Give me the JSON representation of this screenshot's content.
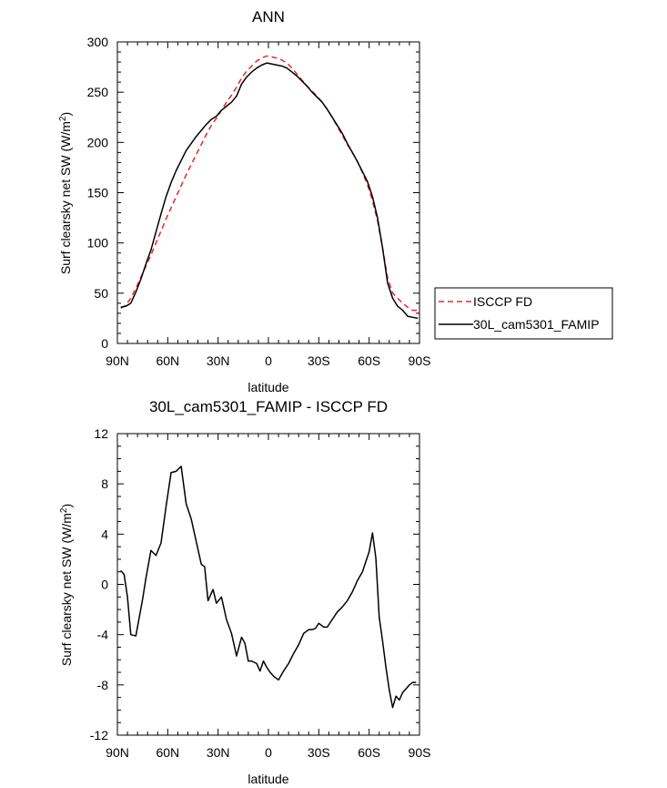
{
  "chart_data": [
    {
      "type": "line",
      "title": "ANN",
      "xlabel": "latitude",
      "ylabel": "Surf clearsky net SW (W/m²)",
      "ylabel_main": "Surf clearsky net SW (W/m",
      "ylabel_sup": "2",
      "ylabel_tail": ")",
      "xlim": [
        90,
        -90
      ],
      "ylim": [
        0,
        300
      ],
      "xticks": [
        {
          "value": 90,
          "label": "90N"
        },
        {
          "value": 60,
          "label": "60N"
        },
        {
          "value": 30,
          "label": "30N"
        },
        {
          "value": 0,
          "label": "0"
        },
        {
          "value": -30,
          "label": "30S"
        },
        {
          "value": -60,
          "label": "60S"
        },
        {
          "value": -90,
          "label": "90S"
        }
      ],
      "yticks": [
        {
          "value": 0,
          "label": "0"
        },
        {
          "value": 50,
          "label": "50"
        },
        {
          "value": 100,
          "label": "100"
        },
        {
          "value": 150,
          "label": "150"
        },
        {
          "value": 200,
          "label": "200"
        },
        {
          "value": 250,
          "label": "250"
        },
        {
          "value": 300,
          "label": "300"
        }
      ],
      "legend": {
        "placement": "right",
        "entries": [
          {
            "name": "ISCCP FD",
            "color": "#e8262b",
            "dash": true
          },
          {
            "name": "30L_cam5301_FAMIP",
            "color": "#000000",
            "dash": false
          }
        ]
      },
      "series": [
        {
          "name": "ISCCP FD",
          "color": "#e8262b",
          "dash": true,
          "x": [
            88,
            85,
            82,
            79,
            76,
            73,
            70,
            67,
            64,
            61,
            58,
            55,
            52,
            49,
            46,
            43,
            40,
            37,
            34,
            31,
            28,
            25,
            22,
            19,
            16,
            13,
            10,
            7,
            4,
            1,
            -2,
            -5,
            -8,
            -11,
            -14,
            -17,
            -20,
            -23,
            -26,
            -29,
            -32,
            -35,
            -38,
            -41,
            -44,
            -47,
            -50,
            -53,
            -56,
            -59,
            -62,
            -65,
            -68,
            -71,
            -74,
            -77,
            -80,
            -83,
            -86,
            -89
          ],
          "y": [
            35,
            38,
            45,
            55,
            66,
            77,
            88,
            100,
            112,
            124,
            135,
            146,
            157,
            168,
            178,
            188,
            198,
            208,
            217,
            224,
            232,
            240,
            247,
            255,
            264,
            271,
            276,
            281,
            284,
            286,
            285,
            284,
            282,
            279,
            274,
            268,
            262,
            256,
            251,
            246,
            240,
            233,
            225,
            216,
            207,
            198,
            190,
            181,
            170,
            158,
            142,
            122,
            95,
            65,
            50,
            45,
            40,
            36,
            33,
            33
          ]
        },
        {
          "name": "30L_cam5301_FAMIP",
          "color": "#000000",
          "dash": false,
          "x": [
            88,
            85,
            82,
            79,
            76,
            73,
            70,
            67,
            64,
            61,
            58,
            55,
            52,
            49,
            46,
            43,
            40,
            37,
            34,
            31,
            28,
            25,
            22,
            19,
            16,
            13,
            10,
            7,
            4,
            1,
            -2,
            -5,
            -8,
            -11,
            -14,
            -17,
            -20,
            -23,
            -26,
            -29,
            -32,
            -35,
            -38,
            -41,
            -44,
            -47,
            -50,
            -53,
            -56,
            -59,
            -62,
            -65,
            -68,
            -71,
            -74,
            -77,
            -80,
            -83,
            -86,
            -89
          ],
          "y": [
            36,
            37,
            40,
            51,
            64,
            79,
            93,
            111,
            129,
            146,
            160,
            172,
            182,
            192,
            199,
            206,
            212,
            218,
            223,
            226,
            232,
            236,
            240,
            246,
            258,
            265,
            270,
            274,
            277,
            279,
            278,
            277,
            276,
            274,
            270,
            266,
            261,
            256,
            250,
            245,
            240,
            233,
            225,
            217,
            209,
            199,
            190,
            181,
            171,
            161,
            146,
            125,
            95,
            60,
            45,
            37,
            33,
            27,
            26,
            25
          ]
        }
      ]
    },
    {
      "type": "line",
      "title": "30L_cam5301_FAMIP - ISCCP FD",
      "xlabel": "latitude",
      "ylabel": "Surf clearsky net SW (W/m²)",
      "ylabel_main": "Surf clearsky net SW (W/m",
      "ylabel_sup": "2",
      "ylabel_tail": ")",
      "xlim": [
        90,
        -90
      ],
      "ylim": [
        -12,
        12
      ],
      "xticks": [
        {
          "value": 90,
          "label": "90N"
        },
        {
          "value": 60,
          "label": "60N"
        },
        {
          "value": 30,
          "label": "30N"
        },
        {
          "value": 0,
          "label": "0"
        },
        {
          "value": -30,
          "label": "30S"
        },
        {
          "value": -60,
          "label": "60S"
        },
        {
          "value": -90,
          "label": "90S"
        }
      ],
      "yticks": [
        {
          "value": -12,
          "label": "-12"
        },
        {
          "value": -8,
          "label": "-8"
        },
        {
          "value": -4,
          "label": "-4"
        },
        {
          "value": 0,
          "label": "0"
        },
        {
          "value": 4,
          "label": "4"
        },
        {
          "value": 8,
          "label": "8"
        },
        {
          "value": 12,
          "label": "12"
        }
      ],
      "series": [
        {
          "color": "#000000",
          "dash": false,
          "x": [
            88,
            86,
            84,
            82,
            79,
            75,
            73,
            70,
            67,
            64,
            61,
            58,
            55,
            52,
            49,
            46,
            43,
            40,
            38,
            36,
            33,
            31,
            28,
            25,
            22,
            19,
            16,
            14,
            12,
            10,
            7,
            5,
            3,
            1,
            -1,
            -3,
            -6,
            -9,
            -12,
            -15,
            -18,
            -21,
            -24,
            -26,
            -28,
            -30,
            -33,
            -35,
            -38,
            -41,
            -44,
            -47,
            -50,
            -53,
            -56,
            -58,
            -60,
            -62,
            -64,
            -66,
            -68,
            -70,
            -72,
            -74,
            -76,
            -78,
            -80,
            -82,
            -84,
            -86,
            -88
          ],
          "y": [
            1.1,
            0.8,
            -1.0,
            -4.0,
            -4.1,
            -1.2,
            0.5,
            2.7,
            2.3,
            3.3,
            6.2,
            8.9,
            9.0,
            9.4,
            6.4,
            5.2,
            3.4,
            1.6,
            1.4,
            -1.3,
            -0.4,
            -1.5,
            -1.0,
            -2.8,
            -3.9,
            -5.7,
            -4.2,
            -4.7,
            -6.1,
            -6.1,
            -6.3,
            -6.9,
            -6.1,
            -6.6,
            -7.0,
            -7.3,
            -7.6,
            -6.9,
            -6.3,
            -5.5,
            -4.8,
            -3.9,
            -3.6,
            -3.6,
            -3.5,
            -3.1,
            -3.4,
            -3.4,
            -2.8,
            -2.2,
            -1.8,
            -1.3,
            -0.6,
            0.3,
            1.0,
            1.8,
            2.6,
            4.1,
            2.1,
            -2.6,
            -4.5,
            -6.6,
            -8.4,
            -9.8,
            -8.9,
            -9.2,
            -8.6,
            -8.3,
            -8.0,
            -7.8,
            -7.8
          ]
        }
      ]
    }
  ]
}
